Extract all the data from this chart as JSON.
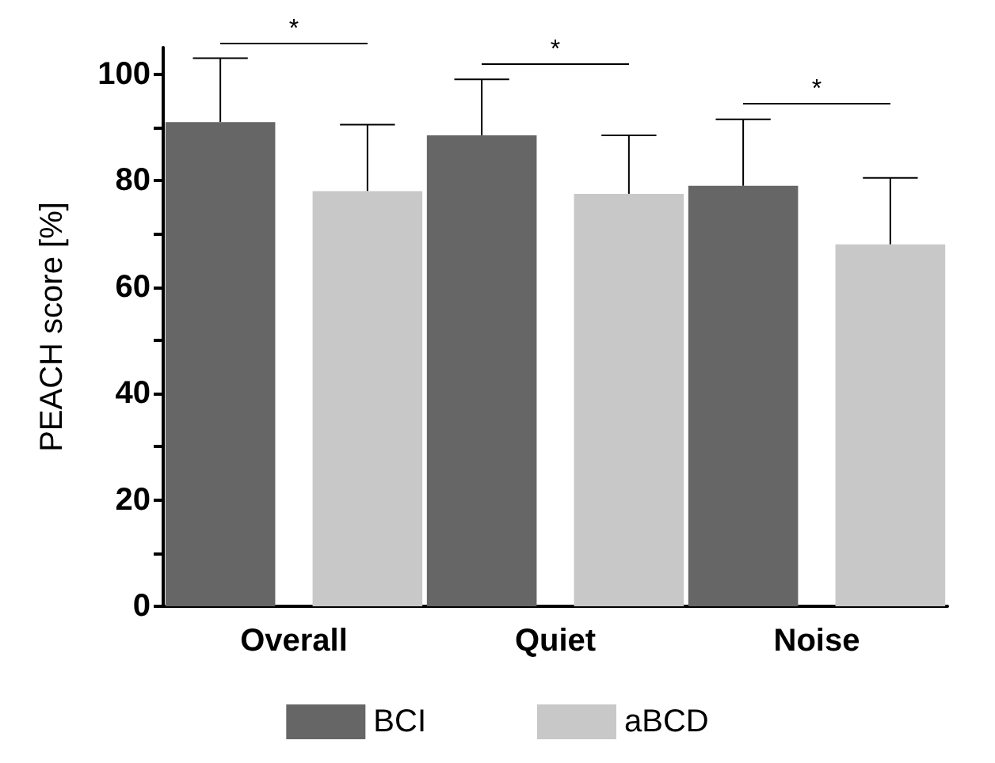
{
  "chart_data": {
    "type": "bar",
    "ylabel": "PEACH score [%]",
    "categories": [
      "Overall",
      "Quiet",
      "Noise"
    ],
    "series": [
      {
        "name": "BCI",
        "color": "#666666",
        "values": [
          91,
          88.5,
          79
        ],
        "errors": [
          [
            91,
            103
          ],
          [
            88.5,
            99
          ],
          [
            79,
            91.5
          ]
        ]
      },
      {
        "name": "aBCD",
        "color": "#c8c8c8",
        "values": [
          78,
          77.5,
          68
        ],
        "errors": [
          [
            78,
            90.5
          ],
          [
            77.5,
            88.5
          ],
          [
            68,
            80.5
          ]
        ]
      }
    ],
    "ylim": [
      0,
      105
    ],
    "yticks": [
      0,
      {
        "value": 10,
        "label": null
      },
      20,
      {
        "value": 30,
        "label": null
      },
      40,
      {
        "value": 50,
        "label": null
      },
      60,
      {
        "value": 70,
        "label": null
      },
      80,
      {
        "value": 90,
        "label": null
      },
      100
    ],
    "annotations": [
      "*",
      "*",
      "*"
    ],
    "legend": "bottom",
    "grid": false
  }
}
